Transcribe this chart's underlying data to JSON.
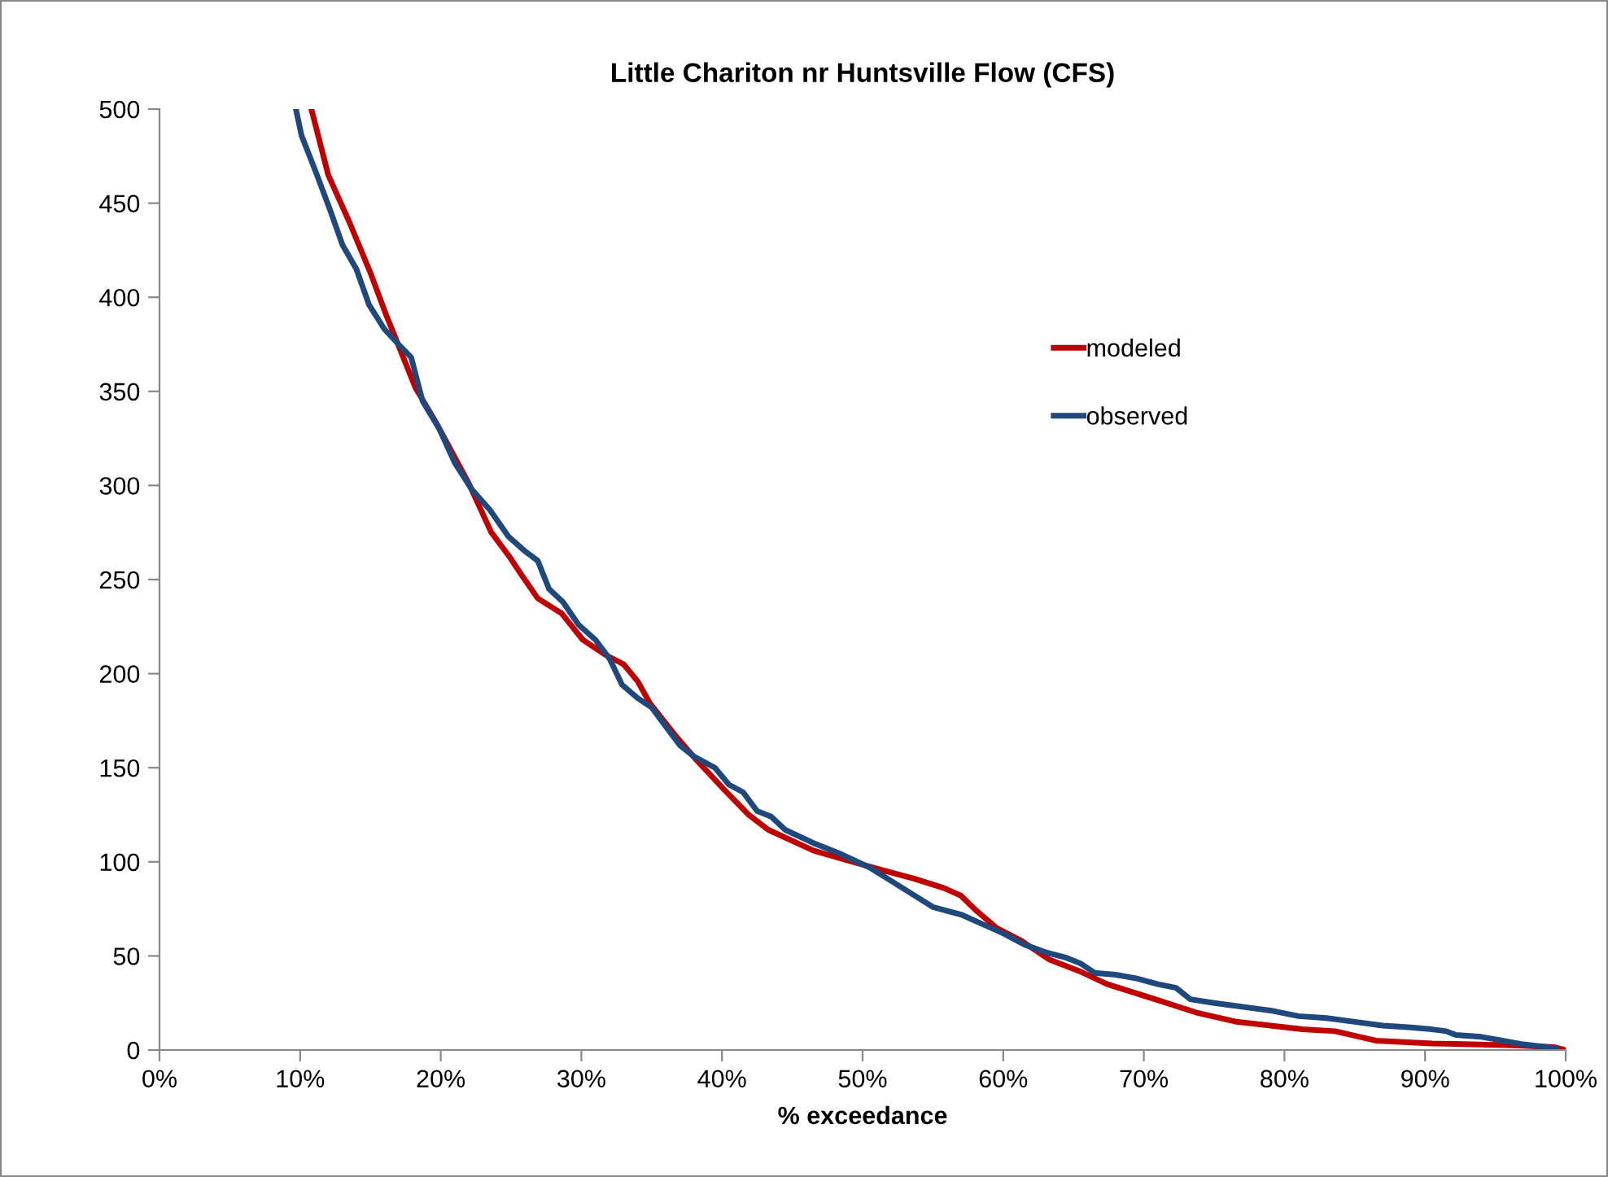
{
  "chart_data": {
    "type": "line",
    "title": "Little Chariton nr Huntsville Flow (CFS)",
    "xlabel": "% exceedance",
    "xlim": [
      0,
      100
    ],
    "ylim": [
      0,
      500
    ],
    "xticks": [
      {
        "value": 0,
        "label": "0%"
      },
      {
        "value": 10,
        "label": "10%"
      },
      {
        "value": 20,
        "label": "20%"
      },
      {
        "value": 30,
        "label": "30%"
      },
      {
        "value": 40,
        "label": "40%"
      },
      {
        "value": 50,
        "label": "50%"
      },
      {
        "value": 60,
        "label": "60%"
      },
      {
        "value": 70,
        "label": "70%"
      },
      {
        "value": 80,
        "label": "80%"
      },
      {
        "value": 90,
        "label": "90%"
      },
      {
        "value": 100,
        "label": "100%"
      }
    ],
    "yticks": [
      0,
      50,
      100,
      150,
      200,
      250,
      300,
      350,
      400,
      450,
      500
    ],
    "grid": false,
    "legend": "top right",
    "marker": "none",
    "line_style": "solid",
    "series": [
      {
        "name": "modeled",
        "color": "#c00000",
        "x": [
          10.8,
          12,
          13.5,
          15,
          16.1,
          18.2,
          19.7,
          22,
          23.6,
          24.9,
          25.7,
          26.9,
          28.6,
          30.1,
          31.7,
          33,
          34,
          34.9,
          36.7,
          38.2,
          40.2,
          41.9,
          43.3,
          46.5,
          48.8,
          51.7,
          53.7,
          55.8,
          57,
          58.1,
          59.5,
          61.3,
          63.3,
          65.4,
          67.4,
          70.8,
          73.7,
          76.6,
          81.3,
          83.6,
          86.5,
          90.5,
          96.3,
          99.2,
          100
        ],
        "values": [
          500,
          465,
          440,
          413,
          391,
          352,
          333,
          301,
          275,
          262,
          253,
          240,
          232,
          218,
          210,
          205,
          196,
          184,
          167,
          154,
          138,
          125,
          117,
          106,
          101,
          95,
          91,
          86,
          82,
          74,
          65,
          58,
          48,
          42,
          35,
          27,
          20,
          15,
          11,
          10,
          5,
          3.5,
          2.5,
          1.5,
          0
        ]
      },
      {
        "name": "observed",
        "color": "#1f497d",
        "x": [
          9.7,
          10.1,
          11.2,
          12.2,
          13,
          14,
          14.9,
          16,
          17,
          17.9,
          18.7,
          19.9,
          21,
          22.2,
          23.5,
          24.8,
          26,
          26.9,
          27.7,
          28.7,
          29.8,
          31,
          32,
          32.9,
          34,
          35,
          36,
          37,
          38,
          39.5,
          40.5,
          41.5,
          42.5,
          43.5,
          44.5,
          46.5,
          48.5,
          50.5,
          52,
          53.5,
          55,
          57,
          58.5,
          60,
          61.5,
          63,
          64.5,
          65.5,
          66.5,
          68,
          69.5,
          71,
          72.3,
          73.3,
          75,
          77,
          79,
          81,
          83,
          85,
          87,
          89,
          90.5,
          91.5,
          92.2,
          94,
          95.5,
          97,
          99.3
        ],
        "values": [
          500,
          486,
          465,
          445,
          428,
          415,
          396,
          383,
          375,
          368,
          345,
          330,
          312,
          298,
          287,
          273,
          265,
          260,
          245,
          238,
          226,
          218,
          208,
          194,
          187,
          182,
          172,
          162,
          156,
          150,
          141,
          137,
          127,
          124,
          117,
          110,
          104,
          97,
          90,
          83,
          76,
          72,
          67,
          62,
          56,
          52,
          49,
          46,
          41,
          40,
          38,
          35,
          33,
          27,
          25,
          23,
          21,
          18,
          17,
          15,
          13,
          12,
          11,
          10,
          8,
          7,
          5,
          3,
          1
        ]
      }
    ]
  }
}
